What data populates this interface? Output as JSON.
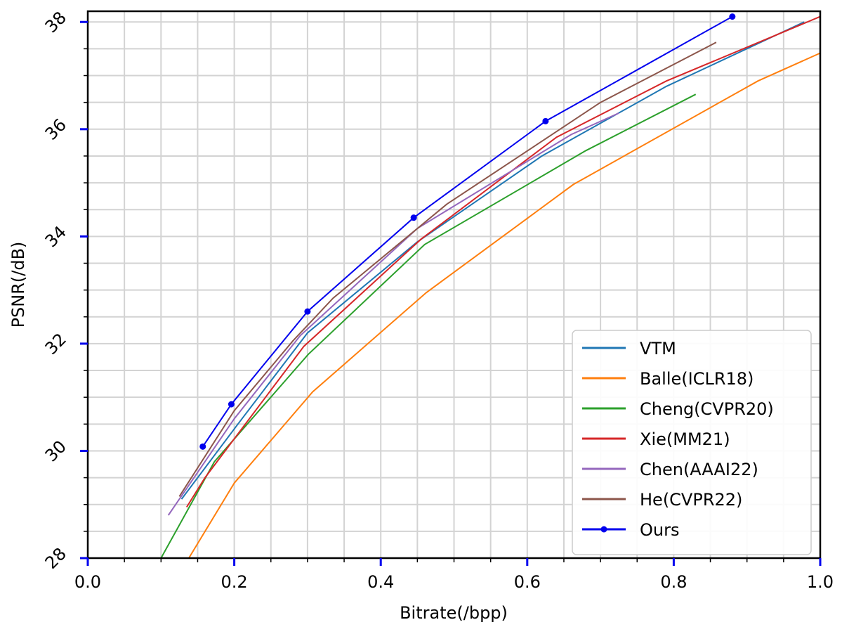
{
  "chart_data": {
    "type": "line",
    "xlabel": "Bitrate(/bpp)",
    "ylabel": "PSNR(/dB)",
    "xlim": [
      0.0,
      1.0
    ],
    "ylim": [
      28,
      38.2
    ],
    "x_ticks": [
      "0.0",
      "0.2",
      "0.4",
      "0.6",
      "0.8",
      "1.0"
    ],
    "y_ticks": [
      "28",
      "30",
      "32",
      "34",
      "36",
      "38"
    ],
    "grid": true,
    "legend_position": "lower-right",
    "series": [
      {
        "name": "VTM",
        "color": "#1f77b4",
        "markers": false,
        "x": [
          0.128,
          0.205,
          0.3,
          0.45,
          0.62,
          0.79,
          0.978
        ],
        "y": [
          29.1,
          30.5,
          32.2,
          33.9,
          35.5,
          36.8,
          38.0
        ]
      },
      {
        "name": "Balle(ICLR18)",
        "color": "#ff7f0e",
        "markers": false,
        "x": [
          0.138,
          0.2,
          0.307,
          0.462,
          0.663,
          0.915,
          1.0
        ],
        "y": [
          28.0,
          29.4,
          31.1,
          32.95,
          34.97,
          36.9,
          37.42
        ]
      },
      {
        "name": "Cheng(CVPR20)",
        "color": "#2ca02c",
        "markers": false,
        "x": [
          0.1,
          0.173,
          0.301,
          0.46,
          0.68,
          0.83
        ],
        "y": [
          28.0,
          29.8,
          31.8,
          33.85,
          35.6,
          36.65
        ]
      },
      {
        "name": "Xie(MM21)",
        "color": "#d62728",
        "markers": false,
        "x": [
          0.135,
          0.16,
          0.295,
          0.455,
          0.64,
          0.79,
          1.0
        ],
        "y": [
          28.95,
          29.5,
          31.95,
          33.95,
          35.85,
          36.9,
          38.1
        ]
      },
      {
        "name": "Chen(AAAI22)",
        "color": "#9467bd",
        "markers": false,
        "x": [
          0.11,
          0.2,
          0.29,
          0.45,
          0.66,
          0.725
        ],
        "y": [
          28.8,
          30.6,
          32.15,
          34.15,
          35.9,
          36.3
        ]
      },
      {
        "name": "He(CVPR22)",
        "color": "#8c564b",
        "markers": false,
        "x": [
          0.125,
          0.2,
          0.28,
          0.335,
          0.49,
          0.7,
          0.858
        ],
        "y": [
          29.15,
          30.75,
          32.05,
          32.85,
          34.6,
          36.5,
          37.62
        ]
      },
      {
        "name": "Ours",
        "color": "#0000ee",
        "markers": true,
        "x": [
          0.157,
          0.196,
          0.3,
          0.445,
          0.625,
          0.88
        ],
        "y": [
          30.08,
          30.87,
          32.6,
          34.35,
          36.15,
          38.1
        ]
      }
    ]
  }
}
